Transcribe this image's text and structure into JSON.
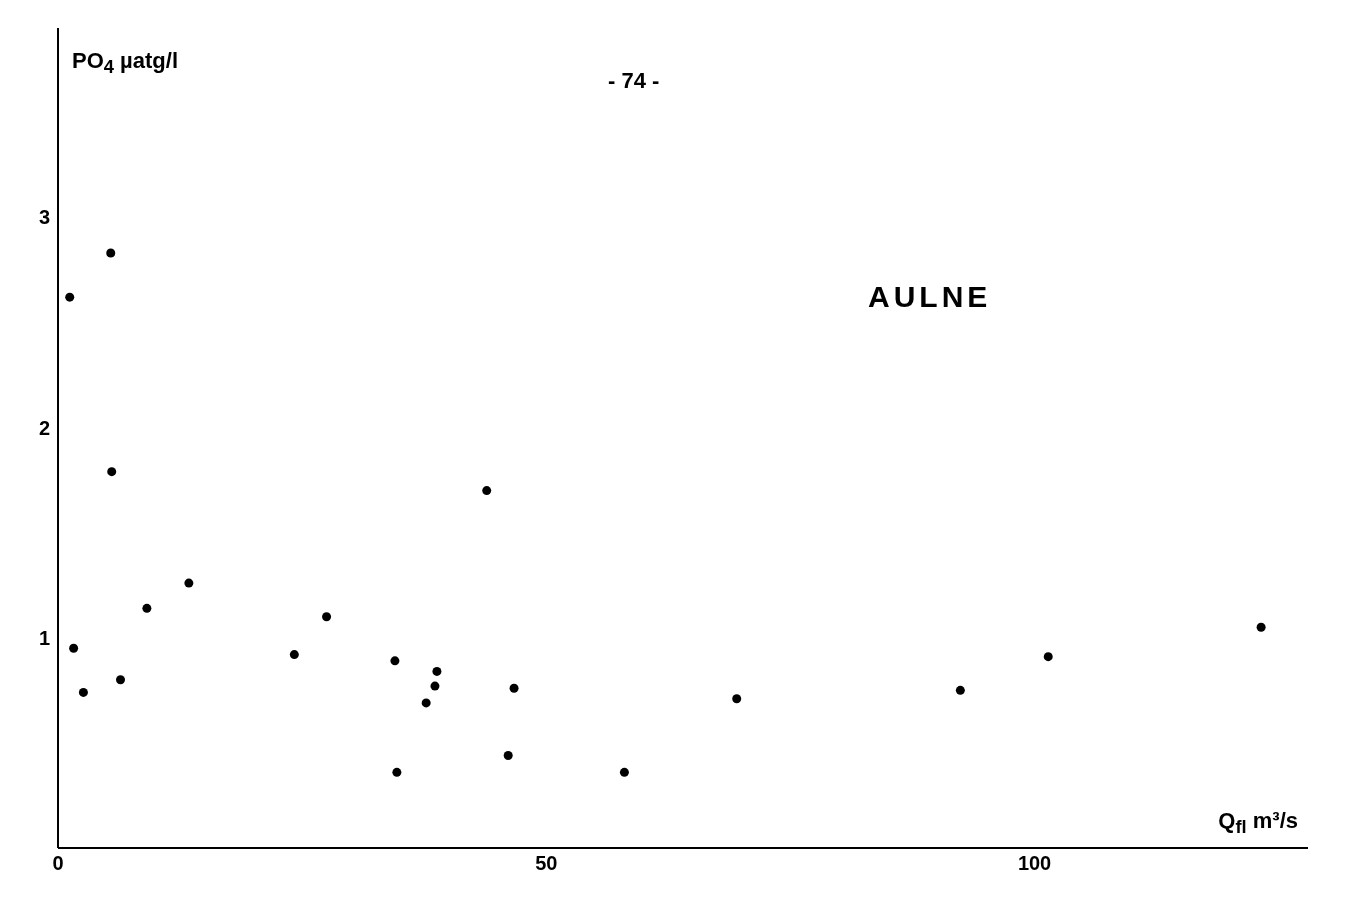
{
  "chart_data": {
    "type": "scatter",
    "title": "AULNE",
    "xlabel": "Q$_{fl}$ m³/s",
    "ylabel": "PO$_{4}$ µatg/l",
    "annotations": [
      "- 74 -"
    ],
    "x": [
      1.2,
      5.4,
      5.5,
      1.6,
      2.6,
      6.4,
      9.1,
      13.4,
      24.2,
      27.5,
      34.5,
      34.7,
      37.7,
      38.6,
      38.8,
      43.9,
      46.1,
      46.7,
      58.0,
      69.5,
      92.4,
      101.4,
      123.2
    ],
    "series": [
      {
        "color": "#000000",
        "values": [
          2.62,
          2.83,
          1.79,
          0.95,
          0.74,
          0.8,
          1.14,
          1.26,
          0.92,
          1.1,
          0.89,
          0.36,
          0.69,
          0.77,
          0.84,
          1.7,
          0.44,
          0.76,
          0.36,
          0.71,
          0.75,
          0.91,
          1.05
        ]
      }
    ],
    "xlim": [
      0,
      128
    ],
    "ylim": [
      0,
      3.9
    ],
    "xticks": [
      0,
      50,
      100
    ],
    "yticks": [
      1,
      2,
      3
    ],
    "grid": false,
    "legend": false,
    "marker": "circle"
  }
}
